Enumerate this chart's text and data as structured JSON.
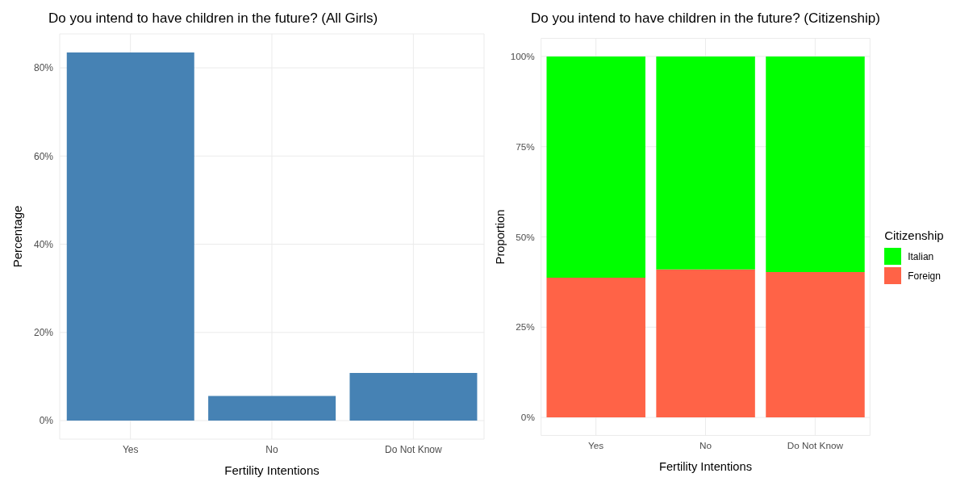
{
  "chart_data": [
    {
      "type": "bar",
      "title": "Do you intend to have children in the future? (All Girls)",
      "xlabel": "Fertility Intentions",
      "ylabel": "Percentage",
      "categories": [
        "Yes",
        "No",
        "Do Not Know"
      ],
      "values": [
        83.5,
        5.6,
        10.8
      ],
      "color": "#4682b4",
      "ylim": [
        -4.2,
        87.7
      ],
      "yticks": [
        {
          "value": 0,
          "label": "0%"
        },
        {
          "value": 20,
          "label": "20%"
        },
        {
          "value": 40,
          "label": "40%"
        },
        {
          "value": 60,
          "label": "60%"
        },
        {
          "value": 80,
          "label": "80%"
        }
      ],
      "grid": true,
      "legend": false
    },
    {
      "type": "bar",
      "title": "Do you intend to have children in the future? (Citizenship)",
      "xlabel": "Fertility Intentions",
      "ylabel": "Proportion",
      "legend_title": "Citizenship",
      "categories": [
        "Yes",
        "No",
        "Do Not Know"
      ],
      "stacked": true,
      "series": [
        {
          "name": "Foreign",
          "color": "#ff6347",
          "values": [
            38.7,
            41.0,
            40.3
          ]
        },
        {
          "name": "Italian",
          "color": "#00ff00",
          "values": [
            61.3,
            59.0,
            59.7
          ]
        }
      ],
      "ylim": [
        -5,
        105
      ],
      "yticks": [
        {
          "value": 0,
          "label": "0%"
        },
        {
          "value": 25,
          "label": "25%"
        },
        {
          "value": 50,
          "label": "50%"
        },
        {
          "value": 75,
          "label": "75%"
        },
        {
          "value": 100,
          "label": "100%"
        }
      ],
      "grid": true,
      "legend": "right"
    }
  ]
}
